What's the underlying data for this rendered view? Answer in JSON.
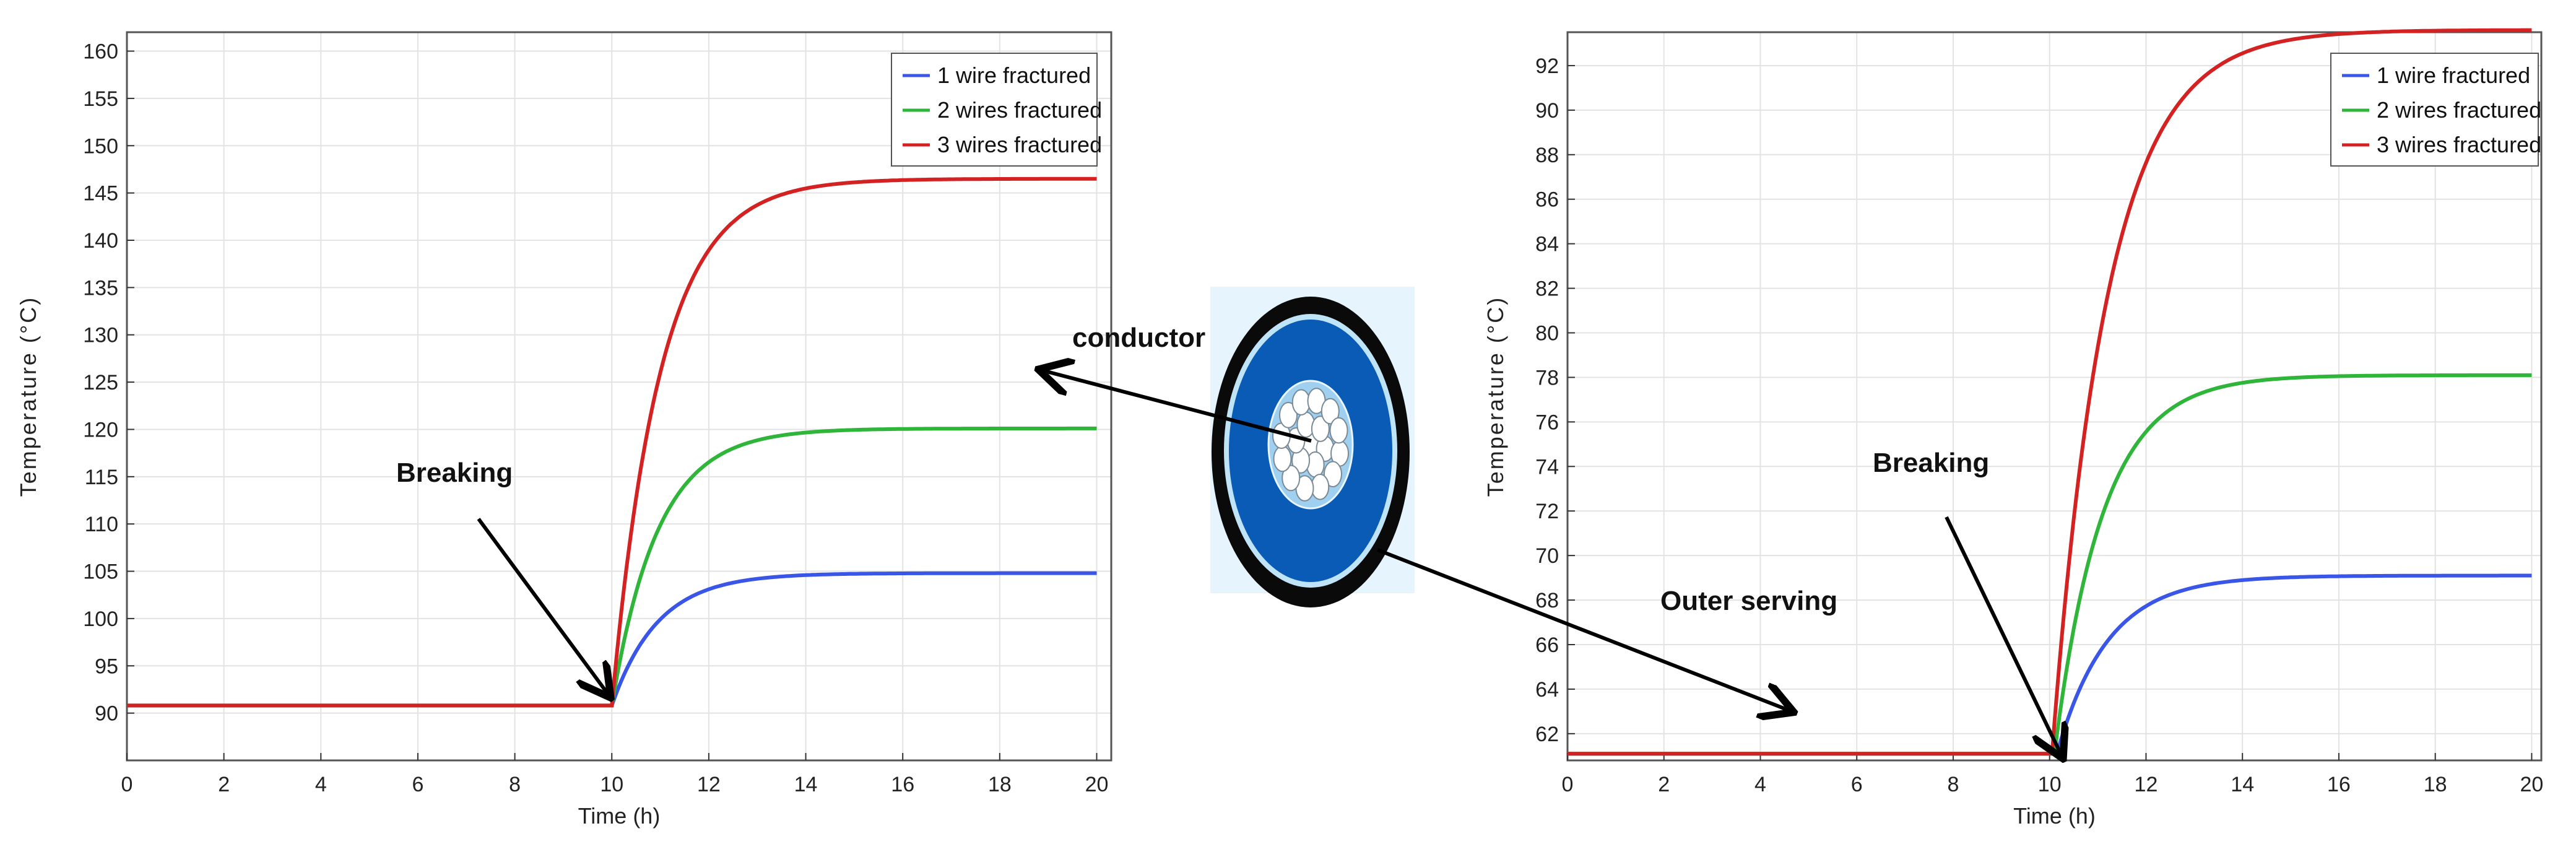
{
  "chart_data": [
    {
      "type": "line",
      "xlabel": "Time (h)",
      "ylabel": "Temperature (°C)",
      "xlim": [
        0,
        20.3
      ],
      "ylim": [
        85,
        162
      ],
      "xticks": [
        0,
        2,
        4,
        6,
        8,
        10,
        12,
        14,
        16,
        18,
        20
      ],
      "yticks": [
        90,
        95,
        100,
        105,
        110,
        115,
        120,
        125,
        130,
        135,
        140,
        145,
        150,
        155,
        160
      ],
      "grid": true,
      "legend_position": "top-right",
      "series": [
        {
          "name": "1 wire fractured",
          "color": "#3a56e8",
          "base": 90.8,
          "final": 104.8,
          "tau": 0.95,
          "rise_start": 10.0
        },
        {
          "name": "2 wires fractured",
          "color": "#2fb53a",
          "base": 90.8,
          "final": 120.1,
          "tau": 0.95,
          "rise_start": 10.0
        },
        {
          "name": "3 wires fractured",
          "color": "#d42222",
          "base": 90.8,
          "final": 146.5,
          "tau": 1.0,
          "rise_start": 10.0
        }
      ],
      "annotations": [
        {
          "text": "Breaking",
          "points_to_x": 10.0,
          "points_to_y": 91.5
        }
      ]
    },
    {
      "type": "line",
      "xlabel": "Time (h)",
      "ylabel": "Temperature (°C)",
      "xlim": [
        0,
        20.2
      ],
      "ylim": [
        60.8,
        93.5
      ],
      "xticks": [
        0,
        2,
        4,
        6,
        8,
        10,
        12,
        14,
        16,
        18,
        20
      ],
      "yticks": [
        62,
        64,
        66,
        68,
        70,
        72,
        74,
        76,
        78,
        80,
        82,
        84,
        86,
        88,
        90,
        92
      ],
      "grid": true,
      "legend_position": "top-right",
      "series": [
        {
          "name": "1 wire fractured",
          "color": "#3a56e8",
          "base": 61.1,
          "final": 69.1,
          "tau": 1.05,
          "rise_start": 10.15
        },
        {
          "name": "2 wires fractured",
          "color": "#2fb53a",
          "base": 61.1,
          "final": 78.1,
          "tau": 1.0,
          "rise_start": 10.1
        },
        {
          "name": "3 wires fractured",
          "color": "#d42222",
          "base": 61.1,
          "final": 93.6,
          "tau": 1.15,
          "rise_start": 10.05
        }
      ],
      "annotations": [
        {
          "text": "Breaking",
          "points_to_x": 10.0,
          "points_to_y": 61.2
        },
        {
          "text": "Outer serving",
          "points_to_x": 4.5,
          "points_to_y": 62.2
        }
      ]
    }
  ],
  "cable": {
    "conductor_label": "conductor",
    "outer_label": "Outer serving",
    "colors": {
      "outer": "#0a0a0a",
      "insulation": "#0a5bb5",
      "ring": "#9fd0ef",
      "background": "#e6f4fd"
    }
  }
}
